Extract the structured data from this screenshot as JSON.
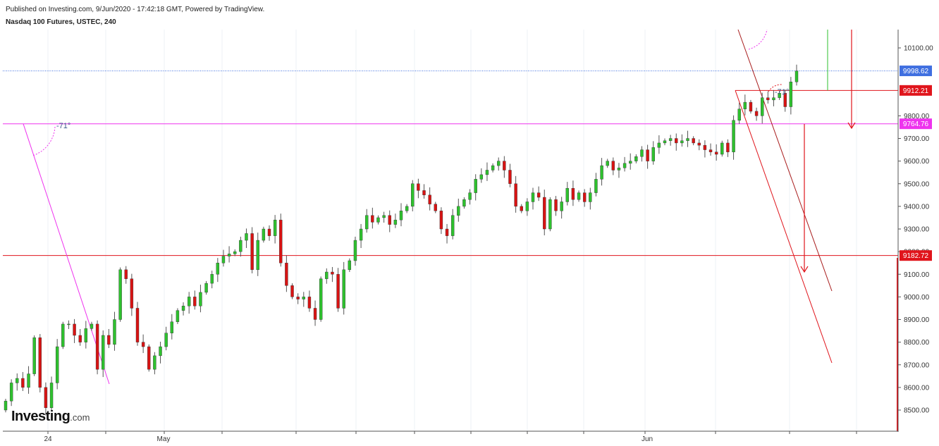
{
  "header": {
    "publish_line": "Published on Investing.com, 9/Jun/2020 - 17:42:18 GMT, Powered by TradingView.",
    "symbol_line": "Nasdaq 100 Futures, USTEC, 240"
  },
  "logo": {
    "word": "Investing",
    "suffix": ".com"
  },
  "chart_data": {
    "type": "candlestick",
    "ylim": [
      8400,
      10170
    ],
    "yticks": [
      "10100.00",
      "9800.00",
      "9700.00",
      "9600.00",
      "9500.00",
      "9400.00",
      "9300.00",
      "9200.00",
      "9100.00",
      "9000.00",
      "8900.00",
      "8800.00",
      "8700.00",
      "8600.00",
      "8500.00"
    ],
    "xticks": [
      "24",
      "May",
      "Jun"
    ],
    "price_labels": [
      {
        "value": "9998.62",
        "color": "#3f6fe0"
      },
      {
        "value": "9912.21",
        "color": "#e0151c"
      },
      {
        "value": "9764.76",
        "color": "#ee33ee"
      },
      {
        "value": "9182.72",
        "color": "#e0151c"
      }
    ],
    "annotations": [
      {
        "text": "-71°",
        "color": "#3b5b8c"
      },
      {
        "text": "-71°",
        "color": "#3b5b8c"
      }
    ],
    "levels": [
      9998.62,
      9912.21,
      9764.76,
      9182.72
    ],
    "colors": {
      "up": "#2ec12e",
      "down": "#d81313",
      "current_line": "#3f6fe0",
      "magenta": "#ee33ee",
      "red": "#e0151c",
      "wick": "#555555"
    },
    "closes": [
      8540,
      8620,
      8640,
      8600,
      8660,
      8820,
      8600,
      8510,
      8620,
      8780,
      8880,
      8880,
      8830,
      8800,
      8860,
      8880,
      8680,
      8830,
      8790,
      8900,
      9120,
      9080,
      8950,
      8800,
      8780,
      8680,
      8740,
      8780,
      8840,
      8890,
      8940,
      8960,
      9000,
      8960,
      9020,
      9060,
      9100,
      9150,
      9180,
      9190,
      9200,
      9250,
      9280,
      9120,
      9250,
      9300,
      9270,
      9340,
      9150,
      9050,
      9000,
      8990,
      9000,
      8950,
      8900,
      9080,
      9110,
      9100,
      8950,
      9120,
      9160,
      9250,
      9300,
      9360,
      9330,
      9350,
      9360,
      9320,
      9340,
      9380,
      9400,
      9500,
      9470,
      9450,
      9410,
      9380,
      9300,
      9270,
      9360,
      9400,
      9430,
      9460,
      9520,
      9540,
      9560,
      9580,
      9600,
      9560,
      9500,
      9400,
      9380,
      9420,
      9460,
      9440,
      9300,
      9430,
      9380,
      9420,
      9480,
      9430,
      9460,
      9420,
      9460,
      9520,
      9580,
      9600,
      9560,
      9570,
      9590,
      9600,
      9620,
      9650,
      9600,
      9660,
      9680,
      9690,
      9700,
      9680,
      9690,
      9700,
      9680,
      9670,
      9650,
      9640,
      9630,
      9680,
      9640,
      9780,
      9830,
      9860,
      9820,
      9800,
      9880,
      9870,
      9880,
      9900,
      9840,
      9950,
      9998
    ]
  }
}
